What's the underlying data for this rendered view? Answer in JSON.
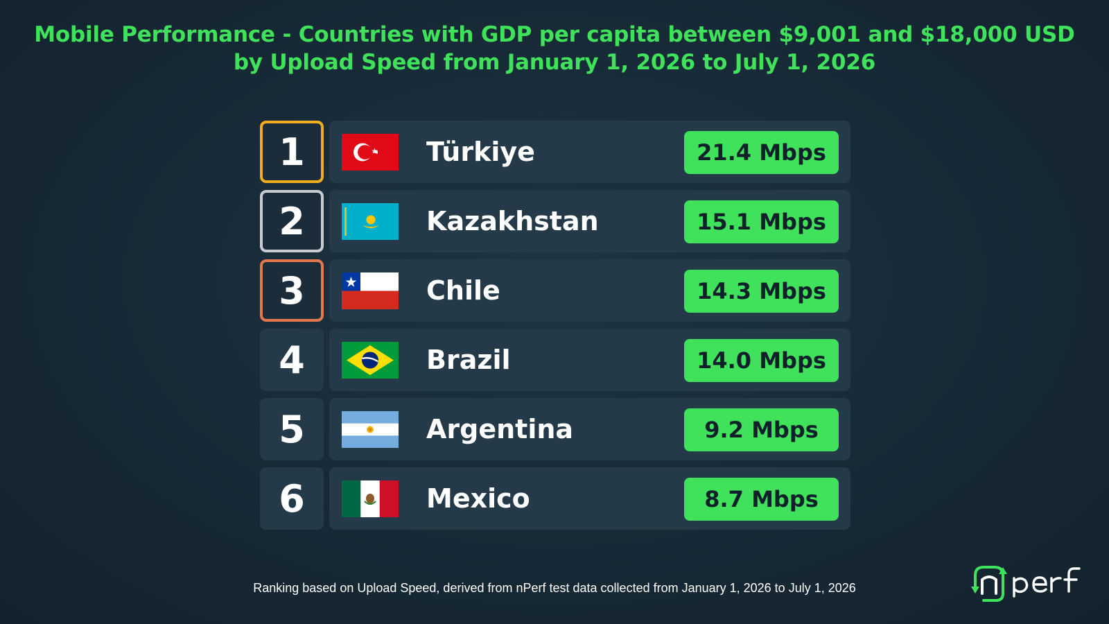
{
  "title": "Mobile Performance - Countries with GDP per capita between $9,001 and $18,000 USD by Upload Speed from January 1, 2026 to July 1, 2026",
  "footnote": "Ranking based on Upload Speed, derived from nPerf test data collected from January 1, 2026 to July 1, 2026",
  "logo": {
    "text": "nperf"
  },
  "colors": {
    "accent": "#3fe25a",
    "gold": "#f1ae1c",
    "silver": "#c7cdd2",
    "bronze": "#e5774f",
    "background": "#182b38",
    "row": "#243a49"
  },
  "chart_data": {
    "type": "table",
    "title": "Mobile Performance - Countries with GDP per capita between $9,001 and $18,000 USD by Upload Speed from January 1, 2026 to July 1, 2026",
    "unit": "Mbps",
    "rows": [
      {
        "rank": "1",
        "country": "Türkiye",
        "flag": "turkey-flag",
        "value": 21.4,
        "label": "21.4 Mbps",
        "medal": "gold"
      },
      {
        "rank": "2",
        "country": "Kazakhstan",
        "flag": "kazakhstan-flag",
        "value": 15.1,
        "label": "15.1 Mbps",
        "medal": "silver"
      },
      {
        "rank": "3",
        "country": "Chile",
        "flag": "chile-flag",
        "value": 14.3,
        "label": "14.3 Mbps",
        "medal": "bronze"
      },
      {
        "rank": "4",
        "country": "Brazil",
        "flag": "brazil-flag",
        "value": 14.0,
        "label": "14.0 Mbps",
        "medal": ""
      },
      {
        "rank": "5",
        "country": "Argentina",
        "flag": "argentina-flag",
        "value": 9.2,
        "label": "9.2 Mbps",
        "medal": ""
      },
      {
        "rank": "6",
        "country": "Mexico",
        "flag": "mexico-flag",
        "value": 8.7,
        "label": "8.7 Mbps",
        "medal": ""
      }
    ]
  }
}
